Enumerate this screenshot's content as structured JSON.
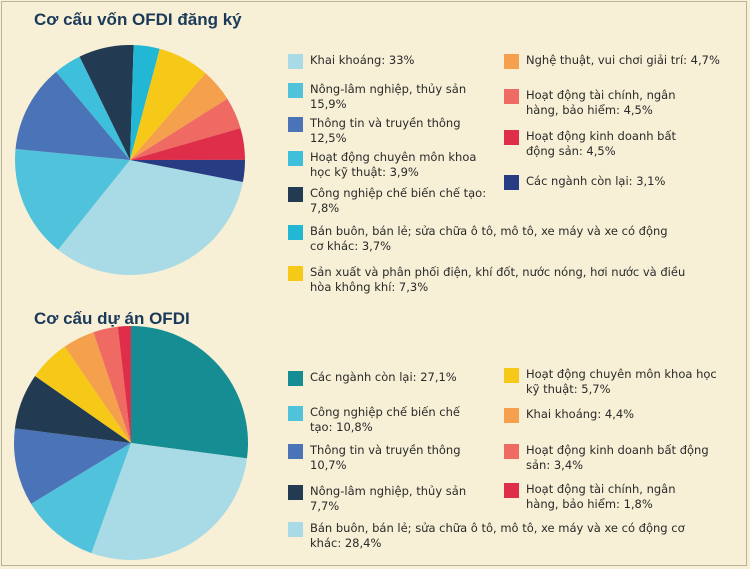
{
  "colors": {
    "background": "#f7efd6",
    "title": "#1b3a5a"
  },
  "chart_data": [
    {
      "type": "pie",
      "title": "Cơ cấu vốn OFDI đăng ký",
      "slices": [
        {
          "label": "Khai khoáng: 33%",
          "value": 33,
          "color": "#a8dbe6"
        },
        {
          "label": "Nông-lâm nghiệp, thủy sản 15,9%",
          "value": 15.9,
          "color": "#50c2dc"
        },
        {
          "label": "Thông tin và truyền thông 12,5%",
          "value": 12.5,
          "color": "#4a73b8"
        },
        {
          "label": "Hoạt động chuyên môn khoa học kỹ thuật: 3,9%",
          "value": 3.9,
          "color": "#3ec0dc"
        },
        {
          "label": "Công nghiệp chế biến chế tạo: 7,8%",
          "value": 7.8,
          "color": "#233b52"
        },
        {
          "label": "Bán buôn, bán lẻ; sửa chữa ô tô, mô tô, xe máy và xe có động cơ khác: 3,7%",
          "value": 3.7,
          "color": "#22b8d5"
        },
        {
          "label": "Sản xuất và phân phối điện, khí đốt, nước nóng, hơi nước và điều hòa không khí: 7,3%",
          "value": 7.3,
          "color": "#f6c818"
        },
        {
          "label": "Nghệ thuật, vui chơi giải trí: 4,7%",
          "value": 4.7,
          "color": "#f5a04c"
        },
        {
          "label": "Hoạt động tài chính, ngân hàng, bảo hiểm: 4,5%",
          "value": 4.5,
          "color": "#ee6a62"
        },
        {
          "label": "Hoạt động kinh doanh bất động sản: 4,5%",
          "value": 4.5,
          "color": "#df2e4a"
        },
        {
          "label": "Các ngành còn lại: 3,1%",
          "value": 3.1,
          "color": "#283c84"
        }
      ]
    },
    {
      "type": "pie",
      "title": "Cơ cấu dự án OFDI",
      "slices": [
        {
          "label": "Các ngành còn lại: 27,1%",
          "value": 27.1,
          "color": "#158d93"
        },
        {
          "label": "Bán buôn, bán lẻ; sửa chữa ô tô, mô tô, xe máy và xe có động cơ khác: 28,4%",
          "value": 28.4,
          "color": "#a8dbe6"
        },
        {
          "label": "Công nghiệp chế biến chế tạo: 10,8%",
          "value": 10.8,
          "color": "#50c2dc"
        },
        {
          "label": "Thông tin và truyền thông 10,7%",
          "value": 10.7,
          "color": "#4a73b8"
        },
        {
          "label": "Nông-lâm nghiệp, thủy sản 7,7%",
          "value": 7.7,
          "color": "#233b52"
        },
        {
          "label": "Hoạt động chuyên môn khoa học kỹ thuật: 5,7%",
          "value": 5.7,
          "color": "#f6c818"
        },
        {
          "label": "Khai khoáng: 4,4%",
          "value": 4.4,
          "color": "#f5a04c"
        },
        {
          "label": "Hoạt động kinh doanh bất động sản: 3,4%",
          "value": 3.4,
          "color": "#ee6a62"
        },
        {
          "label": "Hoạt động tài chính, ngân hàng, bảo hiểm: 1,8%",
          "value": 1.8,
          "color": "#df2e4a"
        }
      ]
    }
  ]
}
